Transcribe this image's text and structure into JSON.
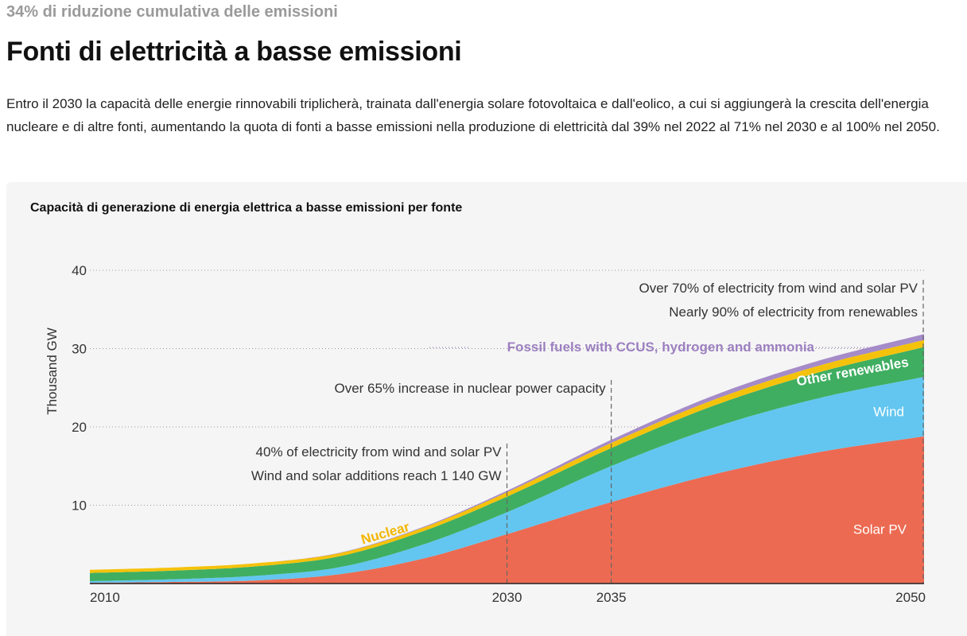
{
  "header": {
    "eyebrow": "34% di riduzione cumulativa delle emissioni",
    "title": "Fonti di elettricità a basse emissioni",
    "description": "Entro il 2030 la capacità delle energie rinnovabili triplicherà, trainata dall'energia solare fotovoltaica e dall'eolico, a cui si aggiungerà la crescita dell'energia nucleare e di altre fonti, aumentando la quota di fonti a basse emissioni nella produzione di elettricità dal 39% nel 2022 al 71% nel 2030 e al 100% nel 2050."
  },
  "chart_data": {
    "type": "area",
    "title": "Capacità di generazione di energia elettrica a basse emissioni per fonte",
    "ylabel": "Thousand GW",
    "xlabel": "",
    "ylim": [
      0,
      40
    ],
    "xlim": [
      2010,
      2050
    ],
    "y_ticks": [
      "10",
      "20",
      "30",
      "40"
    ],
    "x_ticks": [
      "2010",
      "2030",
      "2035",
      "2050"
    ],
    "grid": "dotted horizontal",
    "stacked": true,
    "x": [
      2010,
      2014,
      2018,
      2022,
      2026,
      2030,
      2035,
      2040,
      2045,
      2050
    ],
    "series": [
      {
        "name": "Solar PV",
        "color": "#ec6a52",
        "values": [
          0.1,
          0.2,
          0.4,
          1.2,
          3.2,
          6.3,
          10.4,
          14.0,
          16.8,
          18.8
        ]
      },
      {
        "name": "Wind",
        "color": "#63c6f0",
        "values": [
          0.2,
          0.35,
          0.6,
          0.9,
          1.8,
          2.8,
          4.6,
          6.0,
          6.9,
          7.6
        ]
      },
      {
        "name": "Other renewables",
        "color": "#3fae61",
        "values": [
          1.05,
          1.1,
          1.2,
          1.4,
          1.7,
          2.0,
          2.3,
          2.8,
          3.3,
          3.8
        ]
      },
      {
        "name": "Nuclear",
        "color": "#f5c20b",
        "values": [
          0.4,
          0.4,
          0.4,
          0.4,
          0.45,
          0.55,
          0.65,
          0.75,
          0.85,
          0.9
        ]
      },
      {
        "name": "Fossil fuels with CCUS, hydrogen and ammonia",
        "color": "#a58bc8",
        "values": [
          0.0,
          0.0,
          0.0,
          0.05,
          0.1,
          0.2,
          0.4,
          0.55,
          0.65,
          0.75
        ]
      }
    ],
    "annotations": [
      {
        "x": 2030,
        "lines": [
          "40% of electricity from wind and solar PV",
          "Wind and solar additions reach 1 140 GW"
        ]
      },
      {
        "x": 2035,
        "lines": [
          "Over 65% increase in nuclear power capacity"
        ]
      },
      {
        "x": 2050,
        "lines": [
          "Over 70% of electricity from wind and solar PV",
          "Nearly 90% of electricity from renewables"
        ]
      }
    ]
  }
}
